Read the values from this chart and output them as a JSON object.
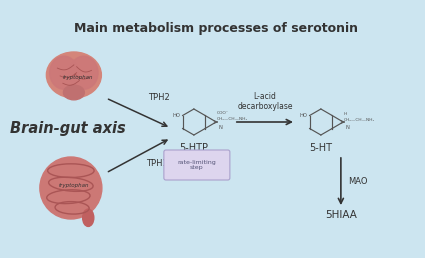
{
  "title": "Main metabolism processes of serotonin",
  "bg_color": "#cce5f0",
  "title_fontsize": 9.0,
  "title_fontweight": "bold",
  "brain_gut_label": "Brain-gut axis",
  "brain_gut_fontsize": 10.5,
  "brain_gut_fontweight": "bold",
  "tryptophan_label": "tryptophan",
  "tph2_label": "TPH2",
  "tph1_label": "TPH1",
  "htp_label": "5-HTP",
  "ht_label": "5-HT",
  "hiaa_label": "5HIAA",
  "enzyme_label": "L-acid\ndecarboxylase",
  "mao_label": "MAO",
  "rate_limiting_label": "rate-limiting\nstep",
  "arrow_color": "#333333",
  "rate_box_color": "#ddd5ee",
  "rate_box_edge": "#aaa0cc",
  "text_color": "#333333",
  "molecule_color": "#555555",
  "coo_label": "COO⁻",
  "ch2_chain_label": "CH₂—CH—NH₂",
  "h_label": "H",
  "ch2_chain_ht_label": "CH₂—CH—NH₂",
  "ho_label": "HO",
  "n_label": "N",
  "h_nh": "H"
}
